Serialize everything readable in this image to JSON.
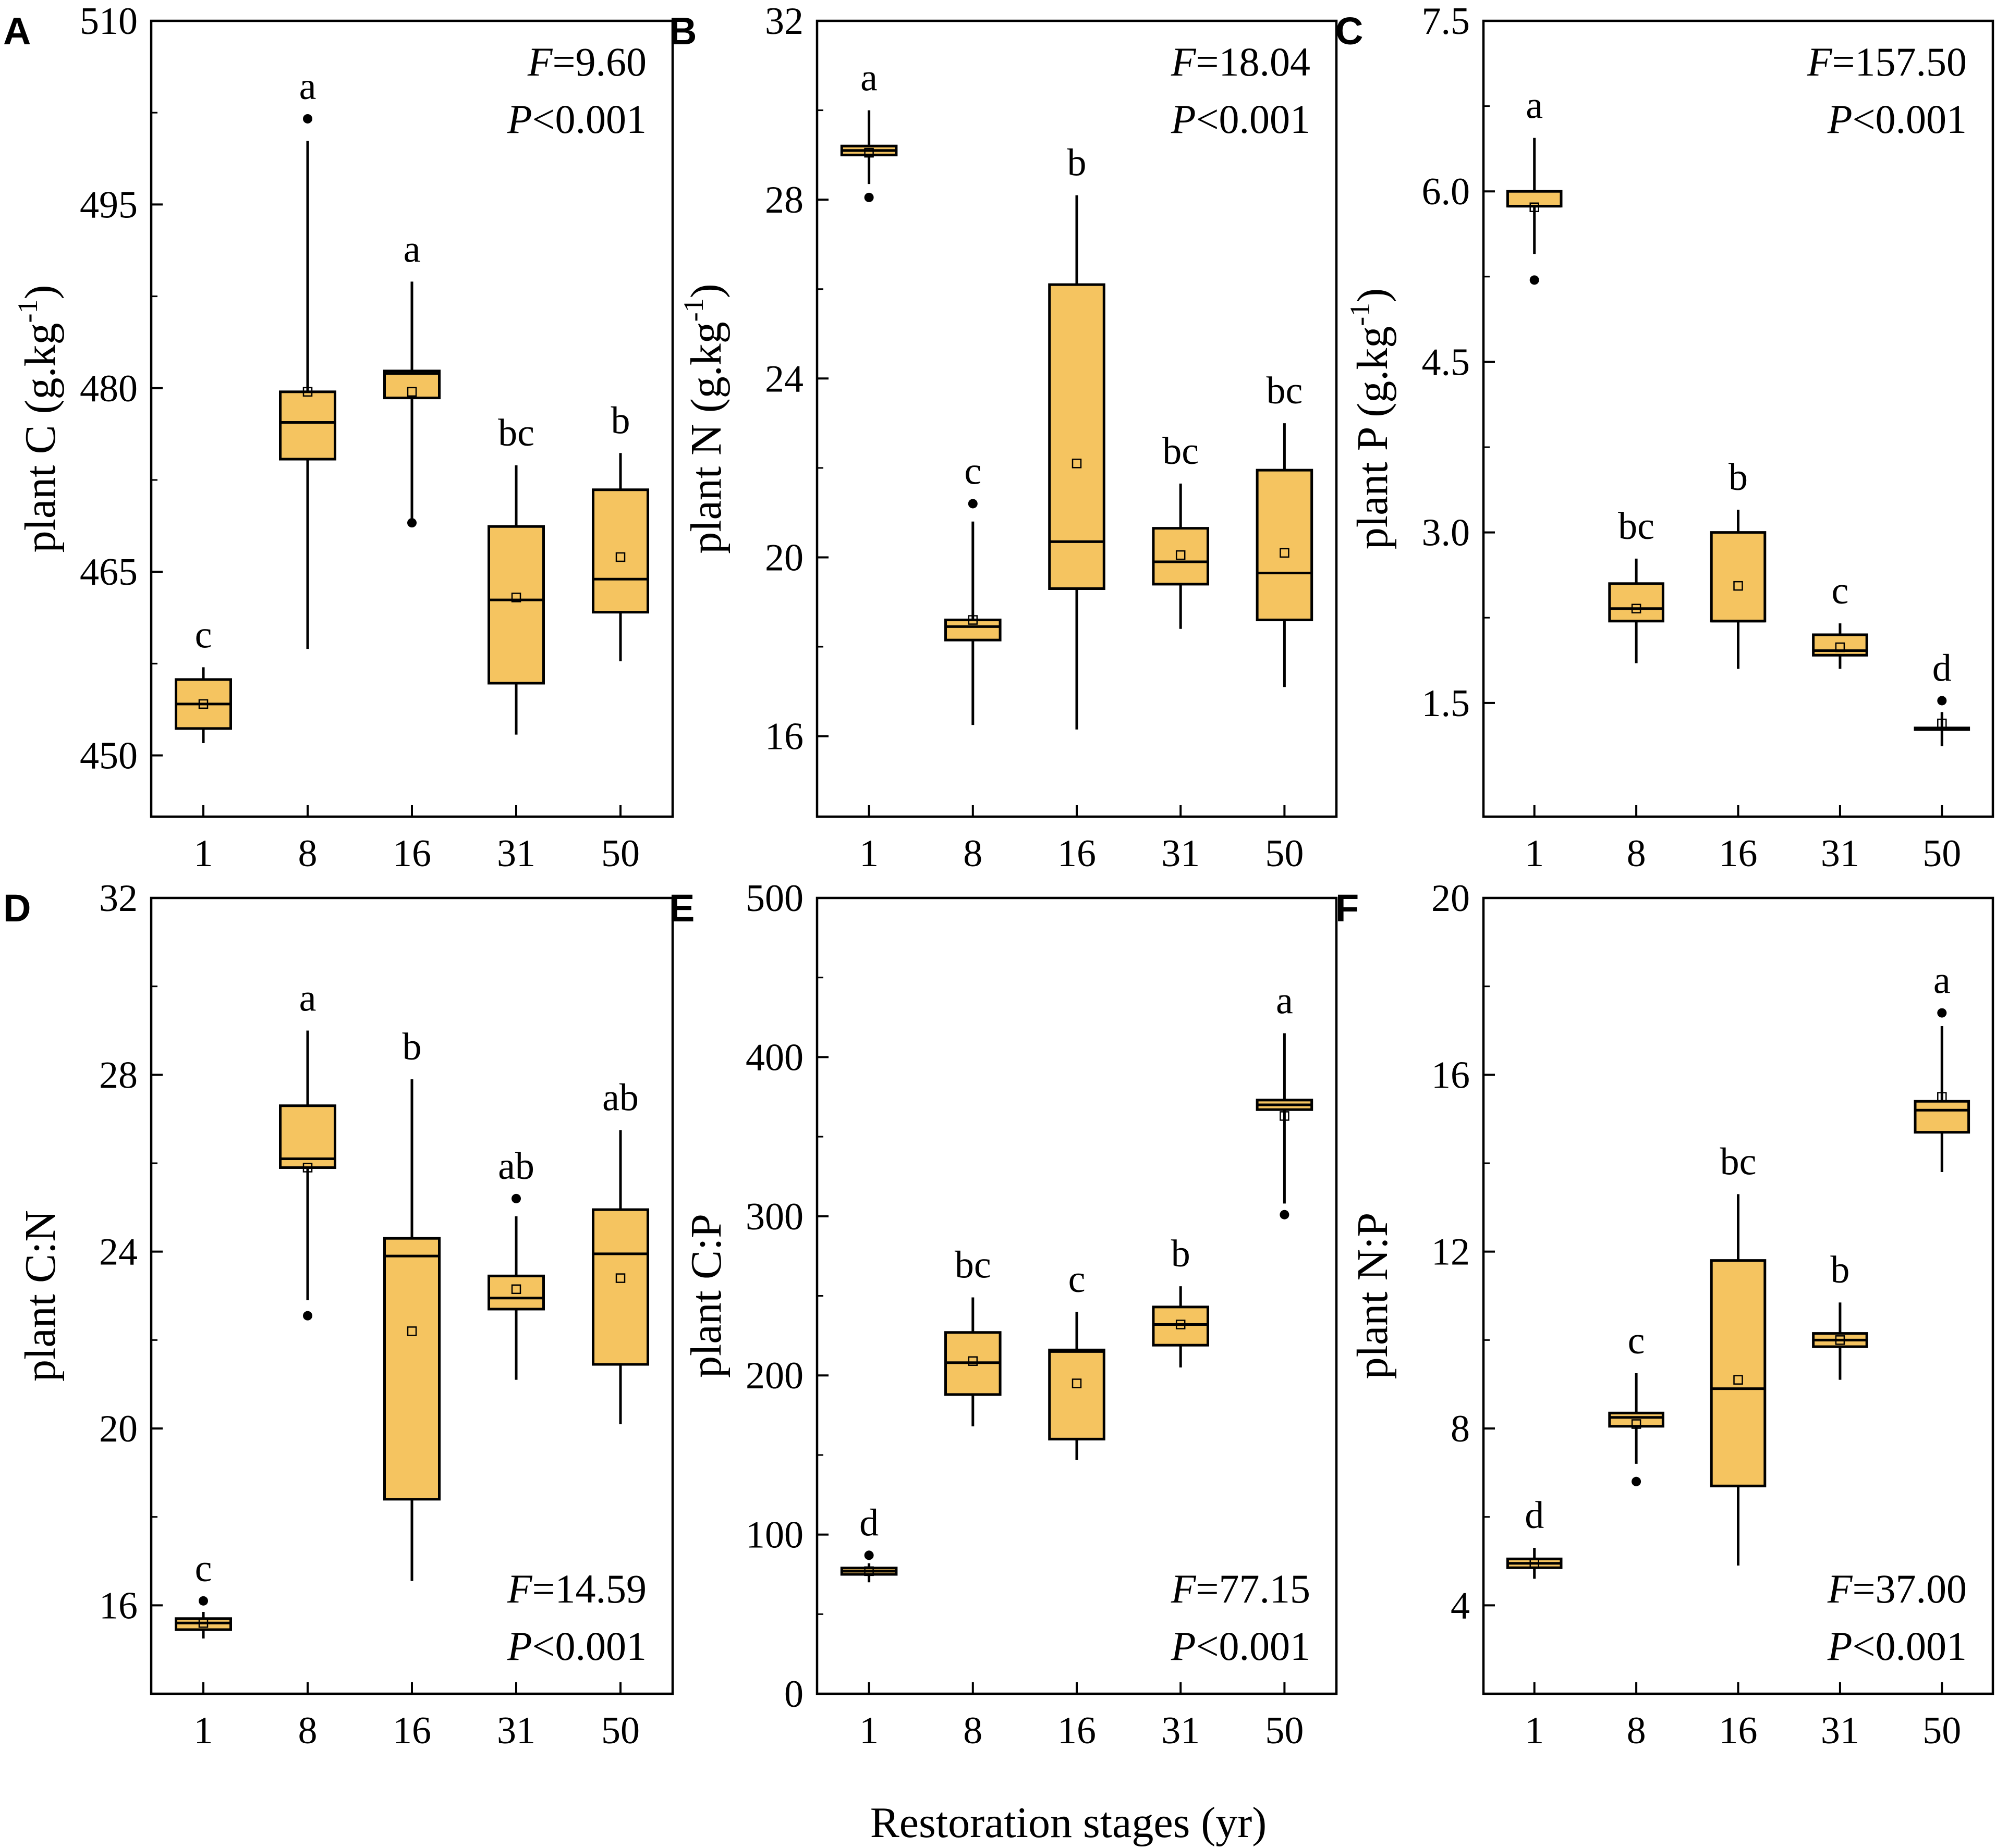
{
  "figure": {
    "xlabel": "Restoration stages (yr)",
    "box_color": "#F5C460",
    "accent_color": "#000000"
  },
  "chart_data": [
    {
      "type": "box",
      "panel": "A",
      "ylabel": "plant C (g.kg",
      "ylabel_sup": "-1",
      "ylabel_close": ")",
      "ylim": [
        445,
        510
      ],
      "yticks": [
        450,
        465,
        480,
        495,
        510
      ],
      "categories": [
        "1",
        "8",
        "16",
        "31",
        "50"
      ],
      "stat_F_label": "F",
      "stat_F_value": "=9.60",
      "stat_P_label": "P",
      "stat_P_value": "<0.001",
      "stats_position": "top-right",
      "boxes": [
        {
          "whisker_low": 451,
          "q1": 452.2,
          "median": 454.2,
          "q3": 456.2,
          "whisker_high": 457.2,
          "mean": 454.2,
          "outliers": [],
          "letter": "c"
        },
        {
          "whisker_low": 458.7,
          "q1": 474.2,
          "median": 477.2,
          "q3": 479.7,
          "whisker_high": 500.2,
          "mean": 479.7,
          "outliers": [
            502
          ],
          "letter": "a"
        },
        {
          "whisker_low": 469.2,
          "q1": 479.2,
          "median": 481.2,
          "q3": 481.4,
          "whisker_high": 488.7,
          "mean": 479.7,
          "outliers": [
            469
          ],
          "letter": "a"
        },
        {
          "whisker_low": 451.7,
          "q1": 455.9,
          "median": 462.7,
          "q3": 468.7,
          "whisker_high": 473.7,
          "mean": 462.9,
          "outliers": [],
          "letter": "bc"
        },
        {
          "whisker_low": 457.7,
          "q1": 461.7,
          "median": 464.4,
          "q3": 471.7,
          "whisker_high": 474.7,
          "mean": 466.2,
          "outliers": [],
          "letter": "b"
        }
      ]
    },
    {
      "type": "box",
      "panel": "B",
      "ylabel": "plant N (g.kg",
      "ylabel_sup": "-1",
      "ylabel_close": ")",
      "ylim": [
        14.2,
        32
      ],
      "yticks": [
        16,
        20,
        24,
        28,
        32
      ],
      "categories": [
        "1",
        "8",
        "16",
        "31",
        "50"
      ],
      "stat_F_label": "F",
      "stat_F_value": "=18.04",
      "stat_P_label": "P",
      "stat_P_value": "<0.001",
      "stats_position": "top-right",
      "boxes": [
        {
          "whisker_low": 28.35,
          "q1": 29.0,
          "median": 29.1,
          "q3": 29.2,
          "whisker_high": 30.0,
          "mean": 29.05,
          "outliers": [
            28.05
          ],
          "letter": "a"
        },
        {
          "whisker_low": 16.25,
          "q1": 18.15,
          "median": 18.45,
          "q3": 18.6,
          "whisker_high": 20.8,
          "mean": 18.6,
          "outliers": [
            21.2
          ],
          "letter": "c"
        },
        {
          "whisker_low": 16.15,
          "q1": 19.3,
          "median": 20.35,
          "q3": 26.1,
          "whisker_high": 28.1,
          "mean": 22.1,
          "outliers": [],
          "letter": "b"
        },
        {
          "whisker_low": 18.4,
          "q1": 19.4,
          "median": 19.9,
          "q3": 20.65,
          "whisker_high": 21.65,
          "mean": 20.05,
          "outliers": [],
          "letter": "bc"
        },
        {
          "whisker_low": 17.1,
          "q1": 18.6,
          "median": 19.65,
          "q3": 21.95,
          "whisker_high": 23.0,
          "mean": 20.1,
          "outliers": [],
          "letter": "bc"
        }
      ]
    },
    {
      "type": "box",
      "panel": "C",
      "ylabel": "plant P (g.kg",
      "ylabel_sup": "-1",
      "ylabel_close": ")",
      "ylim": [
        0.5,
        7.5
      ],
      "yticks": [
        1.5,
        3.0,
        4.5,
        6.0,
        7.5
      ],
      "ytick_labels": [
        "1.5",
        "3.0",
        "4.5",
        "6.0",
        "7.5"
      ],
      "categories": [
        "1",
        "8",
        "16",
        "31",
        "50"
      ],
      "stat_F_label": "F",
      "stat_F_value": "=157.50",
      "stat_P_label": "P",
      "stat_P_value": "<0.001",
      "stats_position": "top-right",
      "boxes": [
        {
          "whisker_low": 5.45,
          "q1": 5.87,
          "median": 5.87,
          "q3": 6.0,
          "whisker_high": 6.47,
          "mean": 5.86,
          "outliers": [
            5.22
          ],
          "letter": "a"
        },
        {
          "whisker_low": 1.85,
          "q1": 2.22,
          "median": 2.33,
          "q3": 2.55,
          "whisker_high": 2.77,
          "mean": 2.33,
          "outliers": [],
          "letter": "bc"
        },
        {
          "whisker_low": 1.8,
          "q1": 2.22,
          "median": 2.22,
          "q3": 3.0,
          "whisker_high": 3.2,
          "mean": 2.53,
          "outliers": [],
          "letter": "b"
        },
        {
          "whisker_low": 1.8,
          "q1": 1.92,
          "median": 1.96,
          "q3": 2.1,
          "whisker_high": 2.2,
          "mean": 1.99,
          "outliers": [],
          "letter": "c"
        },
        {
          "whisker_low": 1.12,
          "q1": 1.27,
          "median": 1.27,
          "q3": 1.28,
          "whisker_high": 1.42,
          "mean": 1.32,
          "outliers": [
            1.52
          ],
          "letter": "d"
        }
      ]
    },
    {
      "type": "box",
      "panel": "D",
      "ylabel": "plant C:N",
      "ylim": [
        14,
        32
      ],
      "yticks": [
        16,
        20,
        24,
        28,
        32
      ],
      "categories": [
        "1",
        "8",
        "16",
        "31",
        "50"
      ],
      "stat_F_label": "F",
      "stat_F_value": "=14.59",
      "stat_P_label": "P",
      "stat_P_value": "<0.001",
      "stats_position": "bottom-right",
      "boxes": [
        {
          "whisker_low": 15.25,
          "q1": 15.45,
          "median": 15.6,
          "q3": 15.7,
          "whisker_high": 15.85,
          "mean": 15.6,
          "outliers": [
            16.1
          ],
          "letter": "c"
        },
        {
          "whisker_low": 22.9,
          "q1": 25.9,
          "median": 26.1,
          "q3": 27.3,
          "whisker_high": 29.0,
          "mean": 25.9,
          "outliers": [
            22.55
          ],
          "letter": "a"
        },
        {
          "whisker_low": 16.55,
          "q1": 18.4,
          "median": 23.9,
          "q3": 24.3,
          "whisker_high": 27.9,
          "mean": 22.2,
          "outliers": [],
          "letter": "b"
        },
        {
          "whisker_low": 21.1,
          "q1": 22.7,
          "median": 22.95,
          "q3": 23.45,
          "whisker_high": 24.8,
          "mean": 23.15,
          "outliers": [
            25.2
          ],
          "letter": "ab"
        },
        {
          "whisker_low": 20.1,
          "q1": 21.45,
          "median": 23.95,
          "q3": 24.95,
          "whisker_high": 26.75,
          "mean": 23.4,
          "outliers": [],
          "letter": "ab"
        }
      ]
    },
    {
      "type": "box",
      "panel": "E",
      "ylabel": "plant C:P",
      "ylim": [
        0,
        500
      ],
      "yticks": [
        0,
        100,
        200,
        300,
        400,
        500
      ],
      "categories": [
        "1",
        "8",
        "16",
        "31",
        "50"
      ],
      "stat_F_label": "F",
      "stat_F_value": "=77.15",
      "stat_P_label": "P",
      "stat_P_value": "<0.001",
      "stats_position": "bottom-right",
      "boxes": [
        {
          "whisker_low": 70,
          "q1": 75,
          "median": 77,
          "q3": 79,
          "whisker_high": 82,
          "mean": 77,
          "outliers": [
            87
          ],
          "letter": "d"
        },
        {
          "whisker_low": 168,
          "q1": 188,
          "median": 208,
          "q3": 227,
          "whisker_high": 249,
          "mean": 209,
          "outliers": [],
          "letter": "bc"
        },
        {
          "whisker_low": 147,
          "q1": 160,
          "median": 215,
          "q3": 216,
          "whisker_high": 240,
          "mean": 195,
          "outliers": [],
          "letter": "c"
        },
        {
          "whisker_low": 205,
          "q1": 219,
          "median": 232,
          "q3": 243,
          "whisker_high": 256,
          "mean": 232,
          "outliers": [],
          "letter": "b"
        },
        {
          "whisker_low": 308,
          "q1": 367,
          "median": 370,
          "q3": 373,
          "whisker_high": 415,
          "mean": 363,
          "outliers": [
            301
          ],
          "letter": "a"
        }
      ]
    },
    {
      "type": "box",
      "panel": "F",
      "ylabel": "plant N:P",
      "ylim": [
        2,
        20
      ],
      "yticks": [
        4,
        8,
        12,
        16,
        20
      ],
      "categories": [
        "1",
        "8",
        "16",
        "31",
        "50"
      ],
      "stat_F_label": "F",
      "stat_F_value": "=37.00",
      "stat_P_label": "P",
      "stat_P_value": "<0.001",
      "stats_position": "bottom-right",
      "boxes": [
        {
          "whisker_low": 4.6,
          "q1": 4.85,
          "median": 4.95,
          "q3": 5.05,
          "whisker_high": 5.3,
          "mean": 4.95,
          "outliers": [],
          "letter": "d"
        },
        {
          "whisker_low": 7.2,
          "q1": 8.05,
          "median": 8.25,
          "q3": 8.35,
          "whisker_high": 9.25,
          "mean": 8.1,
          "outliers": [
            6.8
          ],
          "letter": "c"
        },
        {
          "whisker_low": 4.9,
          "q1": 6.7,
          "median": 8.9,
          "q3": 11.8,
          "whisker_high": 13.3,
          "mean": 9.1,
          "outliers": [],
          "letter": "bc"
        },
        {
          "whisker_low": 9.1,
          "q1": 9.85,
          "median": 10.0,
          "q3": 10.15,
          "whisker_high": 10.85,
          "mean": 10.0,
          "outliers": [],
          "letter": "b"
        },
        {
          "whisker_low": 13.8,
          "q1": 14.7,
          "median": 15.2,
          "q3": 15.4,
          "whisker_high": 17.1,
          "mean": 15.5,
          "outliers": [
            17.4
          ],
          "letter": "a"
        }
      ]
    }
  ]
}
